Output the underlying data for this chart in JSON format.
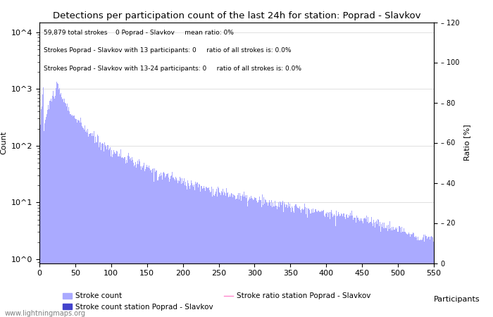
{
  "title": "Detections per participation count of the last 24h for station: Poprad - Slavkov",
  "xlabel": "Participants",
  "ylabel_left": "Count",
  "ylabel_right": "Ratio [%]",
  "annotation_lines": [
    "59,879 total strokes    0 Poprad - Slavkov     mean ratio: 0%",
    "Strokes Poprad - Slavkov with 13 participants: 0     ratio of all strokes is: 0.0%",
    "Strokes Poprad - Slavkov with 13-24 participants: 0     ratio of all strokes is: 0.0%"
  ],
  "xlim": [
    0,
    550
  ],
  "ylim_right": [
    0,
    120
  ],
  "yticks_right": [
    0,
    20,
    40,
    60,
    80,
    100,
    120
  ],
  "bar_color": "#aaaaff",
  "station_bar_color": "#4444cc",
  "ratio_line_color": "#ff88cc",
  "legend_labels": [
    "Stroke count",
    "Stroke count station Poprad - Slavkov",
    "Stroke ratio station Poprad - Slavkov"
  ],
  "watermark": "www.lightningmaps.org",
  "title_fontsize": 9.5,
  "annotation_fontsize": 6.5,
  "axis_fontsize": 8,
  "legend_fontsize": 7.5
}
